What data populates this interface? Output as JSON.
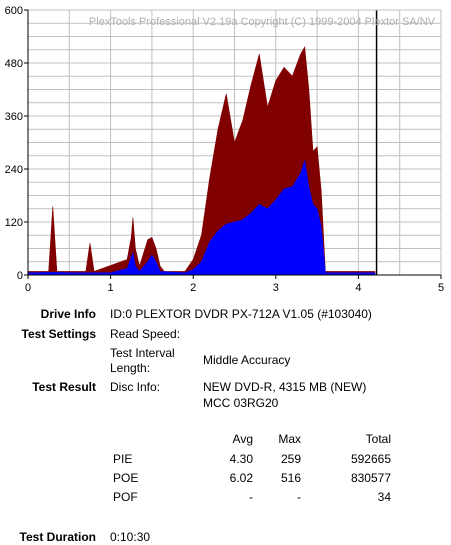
{
  "chart_data": {
    "type": "area",
    "copyright": "PlexTools Professional V2.19a Copyright (C) 1999-2004 Plextor SA/NV",
    "xlim": [
      0,
      5
    ],
    "ylim": [
      0,
      600
    ],
    "x_ticks": [
      "0",
      "1",
      "2",
      "3",
      "4",
      "5"
    ],
    "y_ticks": [
      "0",
      "120",
      "240",
      "360",
      "480",
      "600"
    ],
    "grid": true,
    "end_marker_x": 4.22,
    "colors": {
      "poe": "#800000",
      "pie": "#0000ff",
      "grid": "#c0c0c0",
      "axis": "#000000"
    },
    "series": [
      {
        "key": "poe",
        "x": [
          0,
          0.25,
          0.3,
          0.35,
          0.7,
          0.75,
          0.8,
          1.2,
          1.25,
          1.27,
          1.3,
          1.35,
          1.45,
          1.5,
          1.55,
          1.6,
          1.65,
          1.9,
          2.0,
          2.1,
          2.2,
          2.3,
          2.4,
          2.5,
          2.6,
          2.7,
          2.8,
          2.9,
          3.0,
          3.1,
          3.2,
          3.3,
          3.35,
          3.4,
          3.45,
          3.5,
          3.55,
          3.6,
          4.0,
          4.2
        ],
        "values": [
          8,
          8,
          155,
          8,
          8,
          72,
          8,
          35,
          85,
          130,
          60,
          20,
          80,
          85,
          60,
          20,
          8,
          8,
          35,
          90,
          220,
          330,
          410,
          300,
          350,
          430,
          500,
          380,
          440,
          470,
          450,
          500,
          516,
          420,
          280,
          290,
          190,
          8,
          8,
          8
        ]
      },
      {
        "key": "pie",
        "x": [
          0,
          0.3,
          0.6,
          1.0,
          1.2,
          1.27,
          1.3,
          1.35,
          1.45,
          1.5,
          1.55,
          1.6,
          1.9,
          2.0,
          2.1,
          2.2,
          2.3,
          2.4,
          2.5,
          2.6,
          2.7,
          2.8,
          2.9,
          3.0,
          3.1,
          3.2,
          3.3,
          3.35,
          3.4,
          3.45,
          3.5,
          3.55,
          3.6,
          4.0,
          4.2
        ],
        "values": [
          5,
          6,
          5,
          5,
          15,
          50,
          20,
          8,
          30,
          45,
          30,
          8,
          5,
          12,
          30,
          75,
          100,
          115,
          120,
          125,
          140,
          160,
          150,
          170,
          195,
          200,
          230,
          259,
          200,
          160,
          150,
          110,
          5,
          5,
          5
        ]
      }
    ]
  },
  "info": {
    "drive_info_label": "Drive Info",
    "drive_info_value": "ID:0 PLEXTOR DVDR PX-712A V1.05 (#103040)",
    "test_settings_label": "Test Settings",
    "read_speed_label": "Read Speed:",
    "test_interval_label_1": "Test Interval",
    "test_interval_label_2": "Length:",
    "test_interval_value": "Middle Accuracy",
    "test_result_label": "Test Result",
    "disc_info_label": "Disc Info:",
    "disc_info_value_1": "NEW DVD-R, 4315 MB (NEW)",
    "disc_info_value_2": "MCC 03RG20",
    "test_duration_label": "Test Duration",
    "test_duration_value": "0:10:30"
  },
  "results": {
    "headers": {
      "avg": "Avg",
      "max": "Max",
      "total": "Total"
    },
    "pie": {
      "label": "PIE",
      "avg": "4.30",
      "max": "259",
      "total": "592665"
    },
    "poe": {
      "label": "POE",
      "avg": "6.02",
      "max": "516",
      "total": "830577"
    },
    "pof": {
      "label": "POF",
      "avg": "-",
      "max": "-",
      "total": "34"
    }
  }
}
